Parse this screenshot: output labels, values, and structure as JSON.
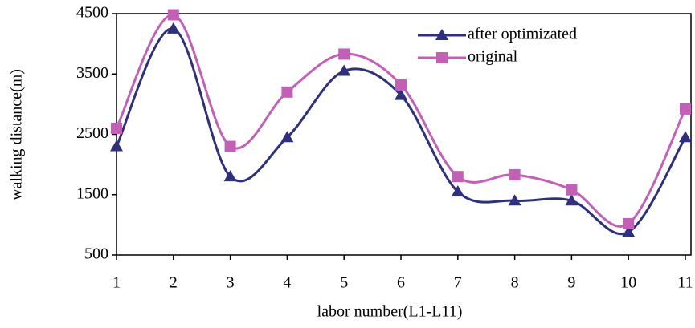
{
  "chart_data": {
    "type": "line",
    "x": [
      1,
      2,
      3,
      4,
      5,
      6,
      7,
      8,
      9,
      10,
      11
    ],
    "xlim": [
      1,
      11
    ],
    "xticks": [
      1,
      2,
      3,
      4,
      5,
      6,
      7,
      8,
      9,
      10,
      11
    ],
    "ylim": [
      500,
      4500
    ],
    "yticks": [
      500,
      1500,
      2500,
      3500,
      4500
    ],
    "xlabel": "labor number(L1-L11)",
    "ylabel": "walking distance(m)",
    "legend": "upper right",
    "smooth": true,
    "series": [
      {
        "name": "after optimizated",
        "color": "#2f2f7f",
        "marker": "triangle",
        "values": [
          2300,
          4250,
          1800,
          2450,
          3550,
          3150,
          1550,
          1400,
          1400,
          880,
          2450
        ]
      },
      {
        "name": "original",
        "color": "#c45fb8",
        "marker": "square",
        "values": [
          2600,
          4480,
          2300,
          3200,
          3830,
          3320,
          1800,
          1830,
          1580,
          1020,
          2920
        ]
      }
    ]
  }
}
